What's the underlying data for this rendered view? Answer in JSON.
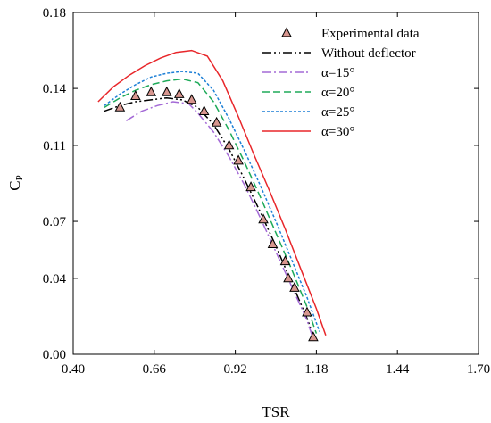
{
  "chart_data": {
    "type": "line",
    "xlabel": "TSR",
    "ylabel": "C",
    "ylabel_sub": "P",
    "xlim": [
      0.4,
      1.7
    ],
    "ylim": [
      0.0,
      0.18
    ],
    "x_ticks": [
      "0.40",
      "0.66",
      "0.92",
      "1.18",
      "1.44",
      "1.70"
    ],
    "y_ticks": [
      "0.00",
      "0.04",
      "0.07",
      "0.11",
      "0.14",
      "0.18"
    ],
    "grid": false,
    "legend_position": "top-right",
    "series": [
      {
        "name": "Experimental data",
        "style": "marker-triangle",
        "color": "#d8968f",
        "x": [
          0.55,
          0.6,
          0.65,
          0.7,
          0.74,
          0.78,
          0.82,
          0.86,
          0.9,
          0.93,
          0.97,
          1.01,
          1.04,
          1.08,
          1.09,
          1.11,
          1.15,
          1.17
        ],
        "y": [
          0.13,
          0.136,
          0.138,
          0.138,
          0.137,
          0.134,
          0.128,
          0.122,
          0.11,
          0.102,
          0.088,
          0.071,
          0.058,
          0.049,
          0.04,
          0.035,
          0.022,
          0.009
        ]
      },
      {
        "name": "Without deflector",
        "style": "dash-dot-dot",
        "color": "#000000",
        "x": [
          0.5,
          0.55,
          0.6,
          0.65,
          0.7,
          0.75,
          0.8,
          0.85,
          0.9,
          0.95,
          1.0,
          1.05,
          1.1,
          1.15,
          1.17
        ],
        "y": [
          0.128,
          0.131,
          0.133,
          0.134,
          0.135,
          0.134,
          0.13,
          0.121,
          0.108,
          0.092,
          0.075,
          0.057,
          0.038,
          0.019,
          0.01
        ]
      },
      {
        "name": "α=15°",
        "style": "dash-dot",
        "color": "#a46ad6",
        "x": [
          0.57,
          0.62,
          0.67,
          0.72,
          0.77,
          0.8,
          0.85,
          0.9,
          0.95,
          1.0,
          1.05,
          1.1,
          1.15,
          1.17
        ],
        "y": [
          0.123,
          0.128,
          0.131,
          0.133,
          0.132,
          0.127,
          0.117,
          0.104,
          0.089,
          0.072,
          0.054,
          0.036,
          0.018,
          0.008
        ]
      },
      {
        "name": "α=20°",
        "style": "dashed",
        "color": "#1eaa59",
        "x": [
          0.5,
          0.55,
          0.6,
          0.65,
          0.7,
          0.75,
          0.8,
          0.85,
          0.9,
          0.95,
          1.0,
          1.05,
          1.1,
          1.15,
          1.18
        ],
        "y": [
          0.13,
          0.135,
          0.139,
          0.142,
          0.144,
          0.145,
          0.143,
          0.133,
          0.118,
          0.101,
          0.083,
          0.064,
          0.045,
          0.025,
          0.011
        ]
      },
      {
        "name": "α=25°",
        "style": "dotted",
        "color": "#1c7fd6",
        "x": [
          0.5,
          0.55,
          0.6,
          0.65,
          0.7,
          0.75,
          0.8,
          0.85,
          0.9,
          0.95,
          1.0,
          1.05,
          1.1,
          1.15,
          1.19
        ],
        "y": [
          0.131,
          0.137,
          0.142,
          0.146,
          0.148,
          0.149,
          0.148,
          0.139,
          0.124,
          0.107,
          0.089,
          0.07,
          0.05,
          0.03,
          0.012
        ]
      },
      {
        "name": "α=30°",
        "style": "solid",
        "color": "#e8262a",
        "x": [
          0.48,
          0.53,
          0.58,
          0.63,
          0.68,
          0.73,
          0.78,
          0.83,
          0.88,
          0.93,
          0.98,
          1.03,
          1.08,
          1.13,
          1.18,
          1.21
        ],
        "y": [
          0.133,
          0.141,
          0.147,
          0.152,
          0.156,
          0.159,
          0.16,
          0.157,
          0.144,
          0.125,
          0.105,
          0.086,
          0.066,
          0.045,
          0.024,
          0.01
        ]
      }
    ]
  }
}
